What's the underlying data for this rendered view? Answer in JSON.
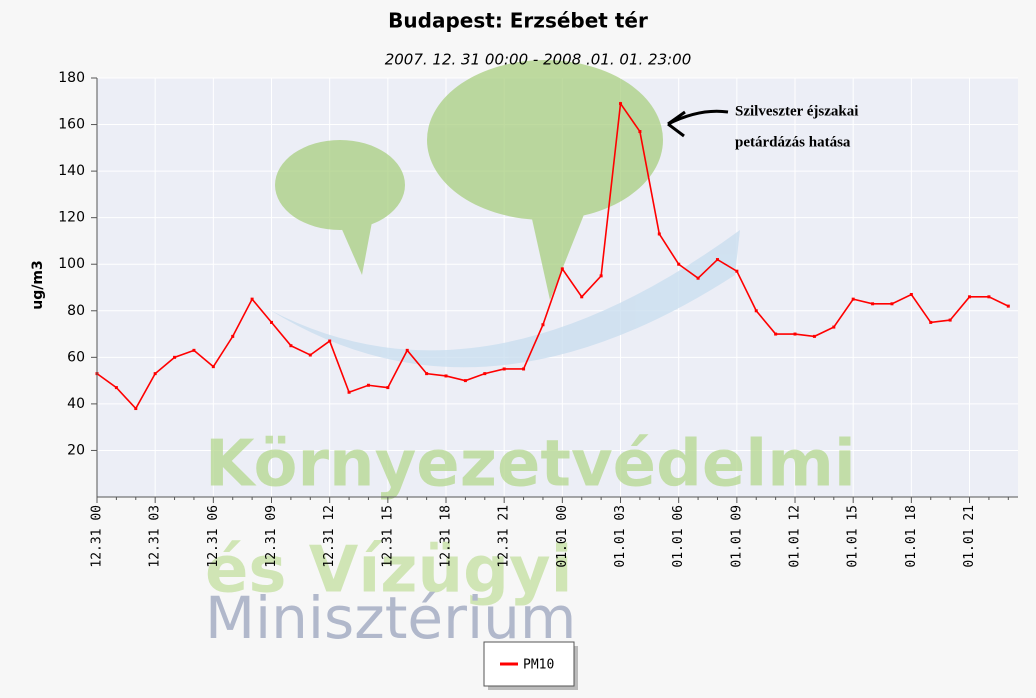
{
  "chart_data": {
    "type": "line",
    "title": "Budapest: Erzsébet tér",
    "subtitle": "2007. 12. 31 00:00 - 2008 .01. 01. 23:00",
    "y_label": "ug/m3",
    "annotation": [
      "Szilveszter éjszakai",
      "petárdázás hatása"
    ],
    "watermark": [
      "Környezetvédelmi",
      "és Vízügyi",
      "Minisztérium"
    ],
    "categories": [
      "12.31 00",
      null,
      null,
      "12.31 03",
      null,
      null,
      "12.31 06",
      null,
      null,
      "12.31 09",
      null,
      null,
      "12.31 12",
      null,
      null,
      "12.31 15",
      null,
      null,
      "12.31 18",
      null,
      null,
      "12.31 21",
      null,
      null,
      "01.01 00",
      null,
      null,
      "01.01 03",
      null,
      null,
      "01.01 06",
      null,
      null,
      "01.01 09",
      null,
      null,
      "01.01 12",
      null,
      null,
      "01.01 15",
      null,
      null,
      "01.01 18",
      null,
      null,
      "01.01 21",
      null,
      null
    ],
    "series": [
      {
        "name": "PM10",
        "color": "#ff0000",
        "values": [
          53,
          47,
          38,
          53,
          60,
          63,
          56,
          69,
          85,
          75,
          65,
          61,
          67,
          45,
          48,
          47,
          63,
          53,
          52,
          50,
          53,
          55,
          55,
          74,
          98,
          86,
          95,
          169,
          157,
          113,
          100,
          94,
          102,
          97,
          80,
          70,
          70,
          69,
          73,
          85,
          83,
          83,
          87,
          75,
          76,
          86,
          86,
          82
        ]
      }
    ],
    "ylim": [
      0,
      180
    ],
    "yticks": [
      20,
      40,
      60,
      80,
      100,
      120,
      140,
      160,
      180
    ],
    "grid": true
  }
}
